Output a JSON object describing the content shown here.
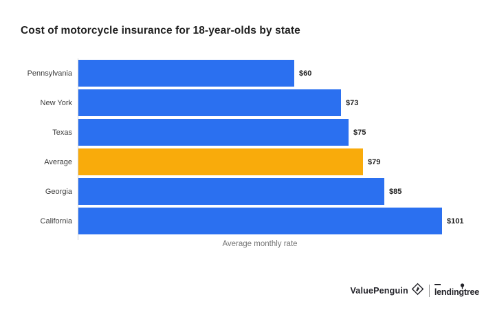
{
  "chart_data": {
    "type": "bar",
    "orientation": "horizontal",
    "title": "Cost of motorcycle insurance for 18-year-olds by state",
    "xlabel": "Average monthly rate",
    "categories": [
      "Pennsylvania",
      "New York",
      "Texas",
      "Average",
      "Georgia",
      "California"
    ],
    "values": [
      60,
      73,
      75,
      79,
      85,
      101
    ],
    "value_labels": [
      "$60",
      "$73",
      "$75",
      "$79",
      "$85",
      "$101"
    ],
    "highlight_category": "Average",
    "bar_color": "#2B70F0",
    "highlight_color": "#F9AB0B",
    "xlim": [
      0,
      101
    ],
    "grid": false,
    "legend": false
  },
  "footer": {
    "valuepenguin_label": "ValuePenguin",
    "lendingtree_label": "lendingtree"
  },
  "colors": {
    "bar_blue": "#2B70F0",
    "bar_orange": "#F9AB0B",
    "title_text": "#1F1F1F",
    "category_text": "#3C3C3C",
    "axis_label_text": "#757575",
    "axis_line": "#D4D4D4",
    "logo_text": "#232329"
  }
}
